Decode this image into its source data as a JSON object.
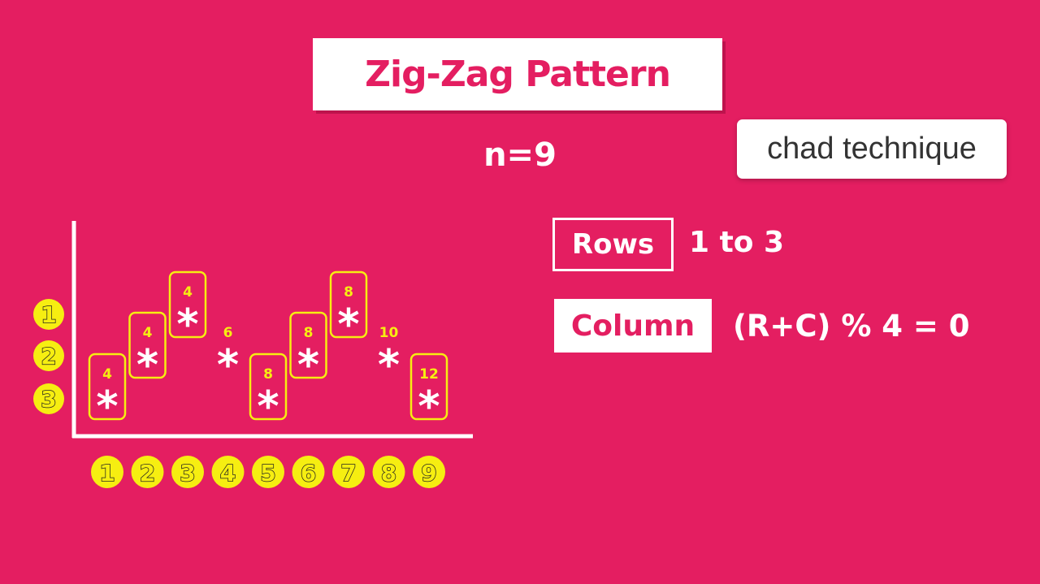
{
  "title": "Zig-Zag Pattern",
  "n_label": "n=9",
  "overlay_label": "chad technique",
  "rows": {
    "label": "Rows",
    "value": "1 to 3"
  },
  "column": {
    "label": "Column",
    "formula": "(R+C) % 4 = 0"
  },
  "colors": {
    "background": "#E41E61",
    "highlight": "#F6EE11",
    "white": "#FFFFFF"
  },
  "diagram": {
    "row_labels": [
      "1",
      "2",
      "3"
    ],
    "column_labels": [
      "1",
      "2",
      "3",
      "4",
      "5",
      "6",
      "7",
      "8",
      "9"
    ],
    "star_symbol": "*",
    "stars": [
      {
        "col": "1",
        "row": "3",
        "sum": "4",
        "boxed": true
      },
      {
        "col": "2",
        "row": "2",
        "sum": "4",
        "boxed": true
      },
      {
        "col": "3",
        "row": "1",
        "sum": "4",
        "boxed": true
      },
      {
        "col": "4",
        "row": "2",
        "sum": "6",
        "boxed": false
      },
      {
        "col": "5",
        "row": "3",
        "sum": "8",
        "boxed": true
      },
      {
        "col": "6",
        "row": "2",
        "sum": "8",
        "boxed": true
      },
      {
        "col": "7",
        "row": "1",
        "sum": "8",
        "boxed": true
      },
      {
        "col": "8",
        "row": "2",
        "sum": "10",
        "boxed": false
      },
      {
        "col": "9",
        "row": "3",
        "sum": "12",
        "boxed": true
      }
    ]
  }
}
